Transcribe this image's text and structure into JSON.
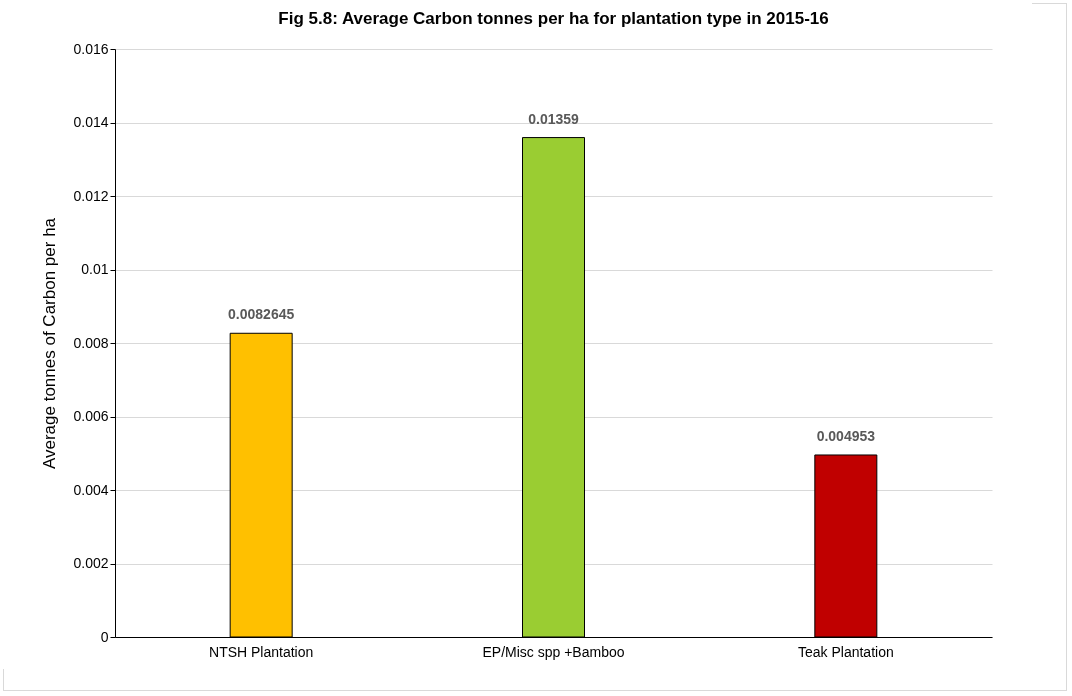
{
  "chart_data": {
    "type": "bar",
    "title": "Fig 5.8: Average Carbon tonnes per ha for plantation type in 2015-16",
    "ylabel": "Average tonnes of Carbon per ha",
    "categories": [
      "NTSH Plantation",
      "EP/Misc spp +Bamboo",
      "Teak Plantation"
    ],
    "values": [
      0.0082645,
      0.01359,
      0.004953
    ],
    "colors": [
      "#ffc000",
      "#9acd32",
      "#c00000"
    ],
    "ylim": [
      0,
      0.016
    ],
    "yticks": [
      0,
      0.002,
      0.004,
      0.006,
      0.008,
      0.01,
      0.012,
      0.014,
      0.016
    ],
    "grid": "y",
    "data_labels": true
  }
}
